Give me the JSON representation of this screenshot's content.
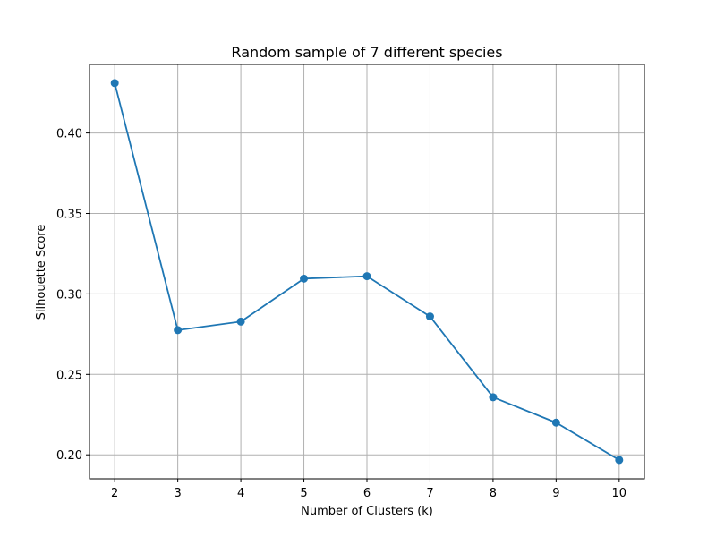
{
  "chart_data": {
    "type": "line",
    "title": "Random sample of 7 different species",
    "xlabel": "Number of Clusters (k)",
    "ylabel": "Silhouette Score",
    "x": [
      2,
      3,
      4,
      5,
      6,
      7,
      8,
      9,
      10
    ],
    "series": [
      {
        "values": [
          0.431,
          0.2775,
          0.2828,
          0.3095,
          0.311,
          0.286,
          0.2358,
          0.22,
          0.1968
        ],
        "color": "#1f77b4",
        "marker": "circle"
      }
    ],
    "xticks": [
      "2",
      "3",
      "4",
      "5",
      "6",
      "7",
      "8",
      "9",
      "10"
    ],
    "yticks": [
      "0.20",
      "0.25",
      "0.30",
      "0.35",
      "0.40"
    ],
    "xlim": [
      1.6,
      10.4
    ],
    "ylim": [
      0.1851,
      0.4426
    ],
    "grid": true,
    "colors": {
      "grid": "#b0b0b0",
      "line": "#1f77b4"
    }
  }
}
